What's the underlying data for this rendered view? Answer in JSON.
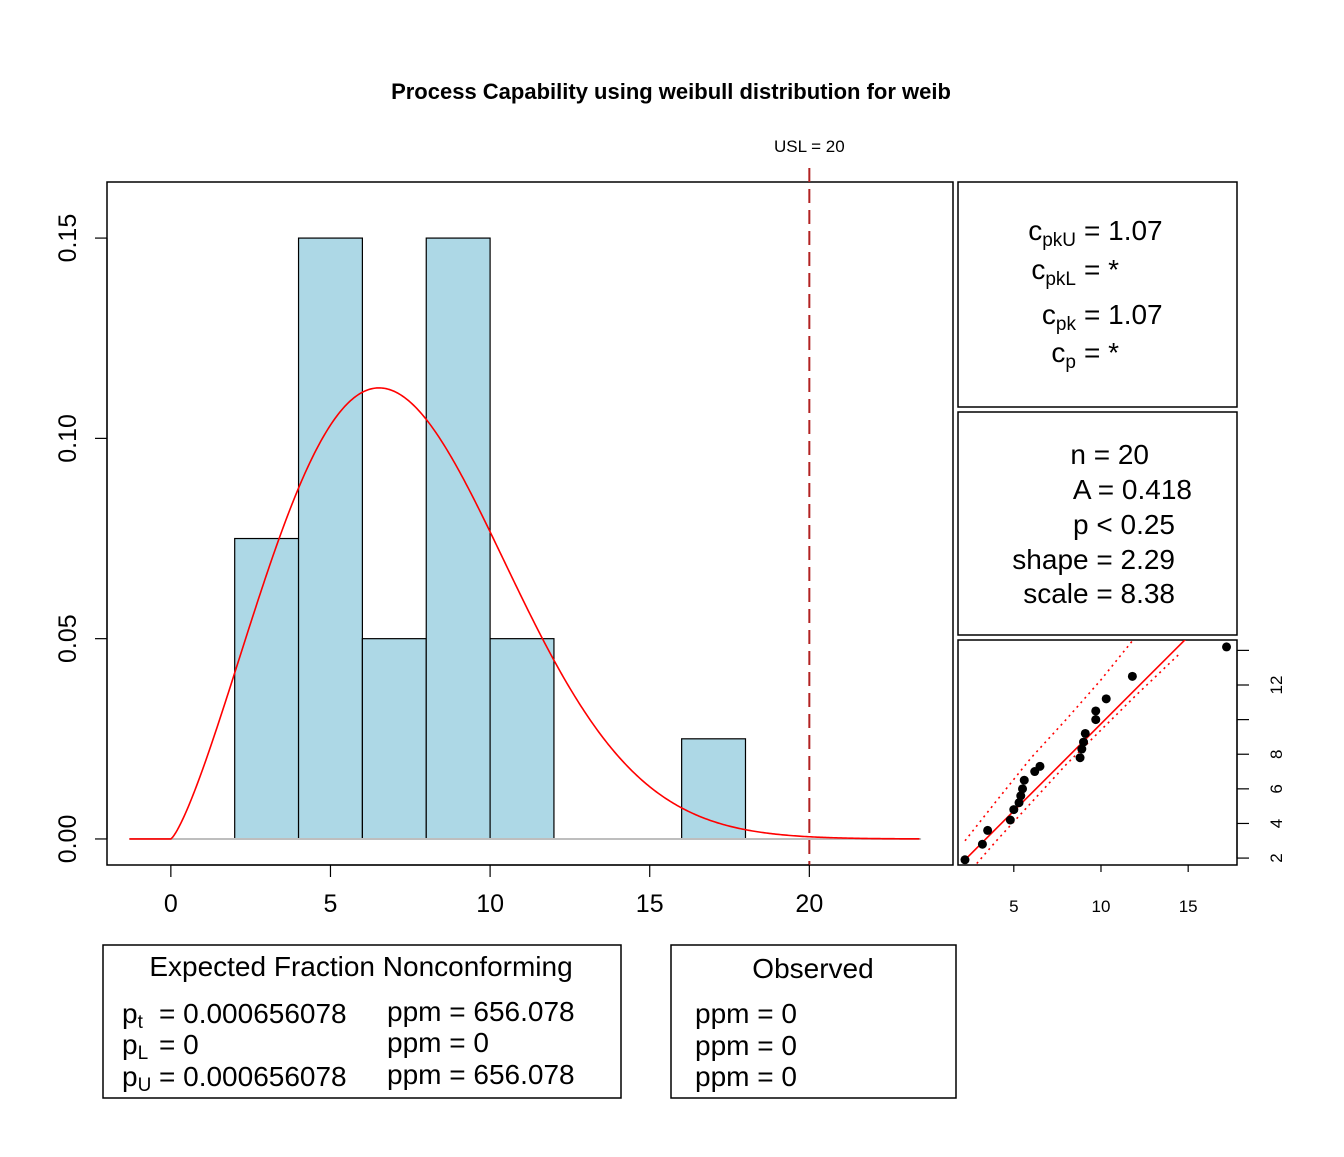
{
  "chart_data": {
    "type": "bar",
    "title": "Process Capability using weibull distribution for weib",
    "usl_label": "USL = 20",
    "usl": 20,
    "histogram": {
      "bins": [
        {
          "from": 2,
          "to": 4,
          "density": 0.075
        },
        {
          "from": 4,
          "to": 6,
          "density": 0.15
        },
        {
          "from": 6,
          "to": 8,
          "density": 0.05
        },
        {
          "from": 8,
          "to": 10,
          "density": 0.15
        },
        {
          "from": 10,
          "to": 12,
          "density": 0.05
        },
        {
          "from": 16,
          "to": 18,
          "density": 0.025
        }
      ],
      "fill": "#add8e6"
    },
    "density_curve": {
      "distribution": "weibull",
      "shape": 2.29,
      "scale": 8.38,
      "x_range": [
        -1.3,
        23.5
      ],
      "color": "#ff0000"
    },
    "xlim": [
      -2,
      24.5
    ],
    "ylim": [
      -0.0065,
      0.164
    ],
    "x_ticks": [
      0,
      5,
      10,
      15,
      20
    ],
    "x_tick_labels": [
      "0",
      "5",
      "10",
      "15",
      "20"
    ],
    "y_ticks": [
      0.0,
      0.05,
      0.1,
      0.15
    ],
    "y_tick_labels": [
      "0.00",
      "0.05",
      "0.10",
      "0.15"
    ],
    "capability": {
      "rows": [
        {
          "base": "c",
          "sub": "pkU",
          "value": "= 1.07"
        },
        {
          "base": "c",
          "sub": "pkL",
          "value": "= *"
        },
        {
          "base": "c",
          "sub": "pk",
          "value": "= 1.07"
        },
        {
          "base": "c",
          "sub": "p",
          "value": "= *"
        }
      ]
    },
    "stats": {
      "lines": [
        "n = 20",
        "A = 0.418",
        "p < 0.25",
        "shape = 2.29",
        "scale = 8.38"
      ]
    },
    "qq_plot": {
      "points": [
        {
          "x": 2.2,
          "y": 1.9
        },
        {
          "x": 3.2,
          "y": 2.8
        },
        {
          "x": 3.5,
          "y": 3.6
        },
        {
          "x": 4.8,
          "y": 4.2
        },
        {
          "x": 5.0,
          "y": 4.8
        },
        {
          "x": 5.3,
          "y": 5.2
        },
        {
          "x": 5.4,
          "y": 5.6
        },
        {
          "x": 5.5,
          "y": 6.0
        },
        {
          "x": 5.6,
          "y": 6.5
        },
        {
          "x": 6.2,
          "y": 7.0
        },
        {
          "x": 6.5,
          "y": 7.3
        },
        {
          "x": 8.8,
          "y": 7.8
        },
        {
          "x": 8.9,
          "y": 8.3
        },
        {
          "x": 9.0,
          "y": 8.7
        },
        {
          "x": 9.1,
          "y": 9.2
        },
        {
          "x": 9.7,
          "y": 10.0
        },
        {
          "x": 9.7,
          "y": 10.5
        },
        {
          "x": 10.3,
          "y": 11.2
        },
        {
          "x": 11.8,
          "y": 12.5
        },
        {
          "x": 17.2,
          "y": 14.2
        }
      ],
      "fit_line": [
        [
          2.2,
          1.9
        ],
        [
          15.5,
          15.3
        ]
      ],
      "lower_band": [
        [
          2.2,
          0.9
        ],
        [
          4,
          3.0
        ],
        [
          6,
          5.2
        ],
        [
          8,
          7.4
        ],
        [
          10,
          9.4
        ],
        [
          12,
          11.4
        ],
        [
          14.5,
          13.8
        ]
      ],
      "upper_band": [
        [
          2.2,
          3.0
        ],
        [
          4,
          5.3
        ],
        [
          6,
          7.8
        ],
        [
          8,
          10.0
        ],
        [
          10,
          12.3
        ],
        [
          12,
          14.8
        ]
      ],
      "xlim": [
        1.8,
        17.8
      ],
      "ylim": [
        1.6,
        14.6
      ],
      "x_ticks": [
        5,
        10,
        15
      ],
      "x_tick_labels": [
        "5",
        "10",
        "15"
      ],
      "y_ticks": [
        2,
        4,
        6,
        8,
        10,
        12,
        14
      ],
      "y_tick_labels": [
        "2",
        "4",
        "6",
        "8",
        "",
        "12",
        ""
      ]
    },
    "expected": {
      "title": "Expected Fraction Nonconforming",
      "rows": [
        {
          "base": "p",
          "sub": "t",
          "value": "= 0.000656078",
          "ppm": "ppm = 656.078"
        },
        {
          "base": "p",
          "sub": "L",
          "value": "= 0",
          "ppm": "ppm = 0"
        },
        {
          "base": "p",
          "sub": "U",
          "value": "= 0.000656078",
          "ppm": "ppm = 656.078"
        }
      ]
    },
    "observed": {
      "title": "Observed",
      "rows": [
        "ppm = 0",
        "ppm = 0",
        "ppm = 0"
      ]
    }
  }
}
